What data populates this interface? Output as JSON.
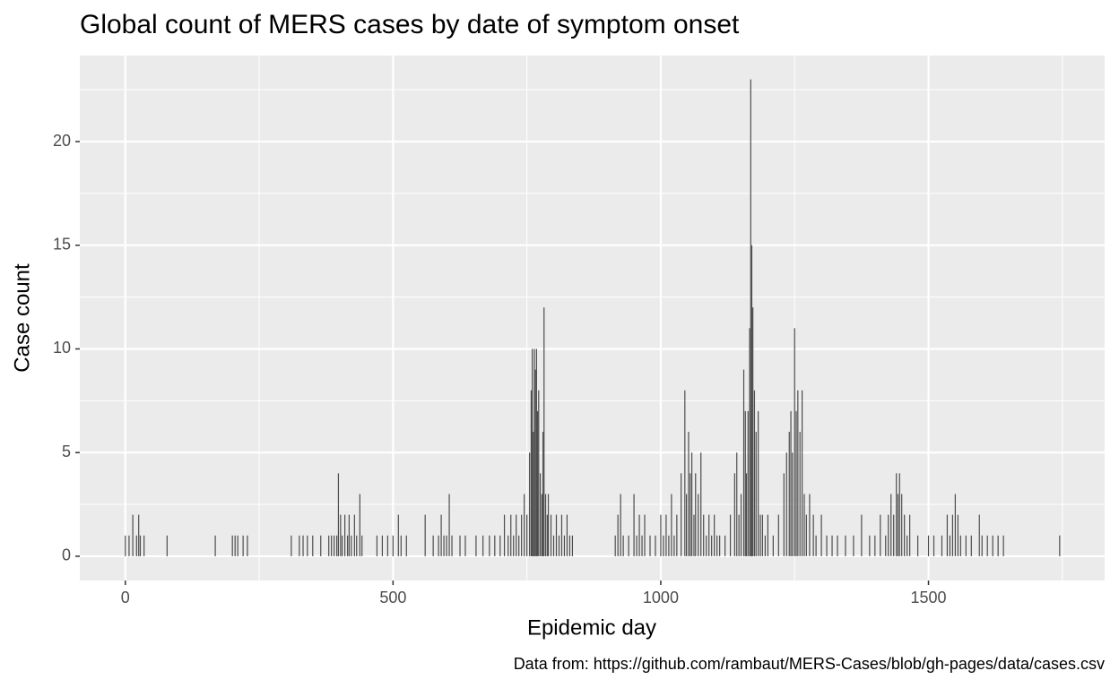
{
  "chart_data": {
    "type": "bar",
    "title": "Global count of MERS cases by date of symptom onset",
    "x_label": "Epidemic day",
    "y_label": "Case count",
    "caption": "Data from: https://github.com/rambaut/MERS-Cases/blob/gh-pages/data/cases.csv",
    "color": "#4d4d4d",
    "grid": true,
    "xlim": [
      -85,
      1829
    ],
    "ylim": [
      -1.17,
      24.15
    ],
    "xticks": [
      0,
      500,
      1000,
      1500
    ],
    "yticks": [
      0,
      5,
      10,
      15,
      20
    ],
    "xminor": [
      250,
      750,
      1250,
      1750
    ],
    "yminor": [
      2.5,
      7.5,
      12.5,
      17.5,
      22.5
    ],
    "x": [
      0,
      7,
      14,
      21,
      25,
      28,
      35,
      78,
      168,
      200,
      205,
      210,
      220,
      228,
      310,
      325,
      332,
      340,
      350,
      365,
      380,
      385,
      390,
      395,
      398,
      402,
      405,
      410,
      415,
      418,
      422,
      428,
      432,
      438,
      442,
      470,
      480,
      490,
      500,
      510,
      515,
      525,
      560,
      575,
      585,
      590,
      595,
      600,
      605,
      610,
      625,
      635,
      655,
      668,
      680,
      690,
      700,
      708,
      715,
      720,
      725,
      730,
      735,
      740,
      745,
      750,
      755,
      758,
      760,
      762,
      764,
      766,
      768,
      770,
      772,
      775,
      778,
      780,
      782,
      785,
      788,
      790,
      795,
      800,
      805,
      810,
      815,
      820,
      825,
      830,
      835,
      915,
      920,
      925,
      930,
      940,
      950,
      955,
      960,
      965,
      970,
      980,
      990,
      1000,
      1005,
      1010,
      1015,
      1020,
      1025,
      1030,
      1038,
      1045,
      1048,
      1052,
      1055,
      1058,
      1062,
      1065,
      1070,
      1075,
      1080,
      1085,
      1090,
      1095,
      1100,
      1105,
      1110,
      1120,
      1130,
      1138,
      1142,
      1146,
      1150,
      1155,
      1158,
      1160,
      1163,
      1166,
      1168,
      1170,
      1172,
      1175,
      1178,
      1182,
      1186,
      1190,
      1195,
      1200,
      1210,
      1220,
      1230,
      1235,
      1240,
      1243,
      1246,
      1250,
      1253,
      1256,
      1260,
      1264,
      1268,
      1272,
      1278,
      1285,
      1290,
      1300,
      1310,
      1320,
      1330,
      1345,
      1360,
      1375,
      1390,
      1400,
      1410,
      1420,
      1425,
      1430,
      1435,
      1440,
      1443,
      1446,
      1450,
      1455,
      1460,
      1465,
      1480,
      1500,
      1510,
      1525,
      1535,
      1540,
      1545,
      1550,
      1555,
      1560,
      1570,
      1580,
      1595,
      1600,
      1610,
      1620,
      1630,
      1640,
      1745
    ],
    "values": [
      1,
      1,
      2,
      1,
      2,
      1,
      1,
      1,
      1,
      1,
      1,
      1,
      1,
      1,
      1,
      1,
      1,
      1,
      1,
      1,
      1,
      1,
      1,
      1,
      4,
      2,
      1,
      2,
      1,
      2,
      1,
      2,
      1,
      3,
      1,
      1,
      1,
      1,
      1,
      2,
      1,
      1,
      2,
      1,
      1,
      2,
      1,
      1,
      3,
      1,
      1,
      1,
      1,
      1,
      1,
      1,
      1,
      2,
      1,
      2,
      1,
      2,
      1,
      2,
      3,
      2,
      5,
      8,
      10,
      6,
      10,
      9,
      10,
      7,
      8,
      4,
      3,
      6,
      12,
      3,
      2,
      3,
      2,
      1,
      2,
      1,
      2,
      1,
      2,
      1,
      1,
      1,
      2,
      3,
      1,
      1,
      3,
      1,
      2,
      1,
      2,
      1,
      1,
      2,
      1,
      2,
      1,
      3,
      1,
      2,
      4,
      8,
      3,
      6,
      4,
      5,
      2,
      4,
      3,
      5,
      2,
      1,
      2,
      1,
      2,
      1,
      1,
      1,
      2,
      4,
      5,
      2,
      3,
      9,
      7,
      4,
      7,
      11,
      23,
      15,
      12,
      8,
      6,
      7,
      2,
      2,
      1,
      2,
      1,
      2,
      4,
      5,
      6,
      7,
      5,
      11,
      7,
      8,
      6,
      8,
      3,
      2,
      3,
      2,
      1,
      2,
      1,
      1,
      1,
      1,
      1,
      2,
      1,
      1,
      2,
      1,
      2,
      3,
      2,
      4,
      3,
      4,
      3,
      2,
      1,
      2,
      1,
      1,
      1,
      1,
      2,
      1,
      2,
      3,
      2,
      1,
      1,
      1,
      2,
      1,
      1,
      1,
      1,
      1,
      1
    ]
  }
}
